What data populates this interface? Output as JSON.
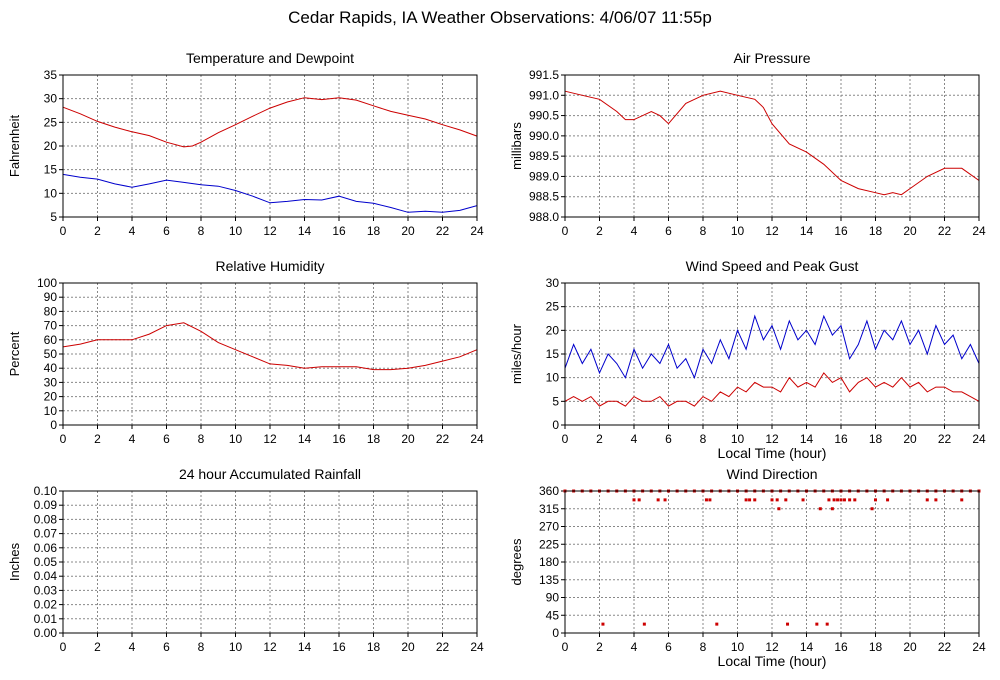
{
  "page": {
    "title": "Cedar Rapids, IA Weather Observations: 4/06/07 11:55p"
  },
  "colors": {
    "red": "#cc0000",
    "blue": "#0000cc",
    "grid": "#888888",
    "axis": "#000000"
  },
  "chart_data": [
    {
      "id": "temp",
      "type": "line",
      "title": "Temperature and Dewpoint",
      "xlabel": "",
      "ylabel": "Fahrenheit",
      "xlim": [
        0,
        24
      ],
      "ylim": [
        5,
        35
      ],
      "xticks": [
        0,
        2,
        4,
        6,
        8,
        10,
        12,
        14,
        16,
        18,
        20,
        22,
        24
      ],
      "yticks": [
        5,
        10,
        15,
        20,
        25,
        30,
        35
      ],
      "ytick_labels": [
        "5",
        "10",
        "15",
        "20",
        "25",
        "30",
        "35"
      ],
      "grid": true,
      "series": [
        {
          "color": "#cc0000",
          "x": [
            0,
            1,
            2,
            3,
            4,
            5,
            6,
            7,
            7.5,
            8,
            9,
            10,
            11,
            12,
            13,
            14,
            15,
            16,
            17,
            18,
            19,
            20,
            21,
            22,
            23,
            24
          ],
          "y": [
            28.2,
            26.8,
            25.2,
            24,
            23,
            22.2,
            20.8,
            19.8,
            20,
            20.8,
            22.8,
            24.5,
            26.3,
            28,
            29.3,
            30.2,
            29.8,
            30.2,
            29.7,
            28.5,
            27.3,
            26.5,
            25.7,
            24.5,
            23.4,
            22.1
          ]
        },
        {
          "color": "#0000cc",
          "x": [
            0,
            1,
            2,
            3,
            4,
            5,
            6,
            7,
            8,
            9,
            10,
            11,
            12,
            13,
            14,
            15,
            16,
            17,
            18,
            19,
            20,
            21,
            22,
            23,
            24
          ],
          "y": [
            14,
            13.4,
            13,
            12,
            11.3,
            12,
            12.8,
            12.3,
            11.8,
            11.5,
            10.6,
            9.4,
            8,
            8.3,
            8.7,
            8.6,
            9.4,
            8.3,
            7.9,
            7,
            6,
            6.2,
            6,
            6.4,
            7.4
          ]
        }
      ]
    },
    {
      "id": "pressure",
      "type": "line",
      "title": "Air Pressure",
      "xlabel": "",
      "ylabel": "millibars",
      "xlim": [
        0,
        24
      ],
      "ylim": [
        988.0,
        991.5
      ],
      "xticks": [
        0,
        2,
        4,
        6,
        8,
        10,
        12,
        14,
        16,
        18,
        20,
        22,
        24
      ],
      "yticks": [
        988.0,
        988.5,
        989.0,
        989.5,
        990.0,
        990.5,
        991.0,
        991.5
      ],
      "ytick_labels": [
        "988.0",
        "988.5",
        "989.0",
        "989.5",
        "990.0",
        "990.5",
        "991.0",
        "991.5"
      ],
      "grid": true,
      "series": [
        {
          "color": "#cc0000",
          "x": [
            0,
            1,
            2,
            3,
            3.5,
            4,
            5,
            5.5,
            6,
            7,
            8,
            9,
            10,
            11,
            11.5,
            12,
            13,
            14,
            15,
            16,
            17,
            18,
            18.5,
            19,
            19.5,
            20,
            21,
            22,
            23,
            24
          ],
          "y": [
            991.1,
            991.0,
            990.9,
            990.6,
            990.4,
            990.4,
            990.6,
            990.5,
            990.3,
            990.8,
            991.0,
            991.1,
            991.0,
            990.9,
            990.7,
            990.3,
            989.8,
            989.6,
            989.3,
            988.9,
            988.7,
            988.6,
            988.55,
            988.6,
            988.55,
            988.7,
            989.0,
            989.2,
            989.2,
            988.9
          ]
        }
      ]
    },
    {
      "id": "humidity",
      "type": "line",
      "title": "Relative Humidity",
      "xlabel": "",
      "ylabel": "Percent",
      "xlim": [
        0,
        24
      ],
      "ylim": [
        0,
        100
      ],
      "xticks": [
        0,
        2,
        4,
        6,
        8,
        10,
        12,
        14,
        16,
        18,
        20,
        22,
        24
      ],
      "yticks": [
        0,
        10,
        20,
        30,
        40,
        50,
        60,
        70,
        80,
        90,
        100
      ],
      "ytick_labels": [
        "0",
        "10",
        "20",
        "30",
        "40",
        "50",
        "60",
        "70",
        "80",
        "90",
        "100"
      ],
      "grid": true,
      "series": [
        {
          "color": "#cc0000",
          "x": [
            0,
            1,
            2,
            3,
            4,
            5,
            6,
            7,
            8,
            9,
            10,
            11,
            12,
            13,
            14,
            15,
            16,
            17,
            18,
            19,
            20,
            21,
            22,
            23,
            24
          ],
          "y": [
            55,
            57,
            60,
            60,
            60,
            64,
            70,
            72,
            66,
            58,
            53,
            48,
            43,
            42,
            40,
            41,
            41,
            41,
            39,
            39,
            40,
            42,
            45,
            48,
            53
          ]
        }
      ]
    },
    {
      "id": "wind",
      "type": "line",
      "title": "Wind Speed and Peak Gust",
      "xlabel": "Local Time (hour)",
      "ylabel": "miles/hour",
      "xlim": [
        0,
        24
      ],
      "ylim": [
        0,
        30
      ],
      "xticks": [
        0,
        2,
        4,
        6,
        8,
        10,
        12,
        14,
        16,
        18,
        20,
        22,
        24
      ],
      "yticks": [
        0,
        5,
        10,
        15,
        20,
        25,
        30
      ],
      "ytick_labels": [
        "0",
        "5",
        "10",
        "15",
        "20",
        "25",
        "30"
      ],
      "grid": true,
      "series": [
        {
          "color": "#0000cc",
          "x": [
            0,
            0.5,
            1,
            1.5,
            2,
            2.5,
            3,
            3.5,
            4,
            4.5,
            5,
            5.5,
            6,
            6.5,
            7,
            7.5,
            8,
            8.5,
            9,
            9.5,
            10,
            10.5,
            11,
            11.5,
            12,
            12.5,
            13,
            13.5,
            14,
            14.5,
            15,
            15.5,
            16,
            16.5,
            17,
            17.5,
            18,
            18.5,
            19,
            19.5,
            20,
            20.5,
            21,
            21.5,
            22,
            22.5,
            23,
            23.5,
            24
          ],
          "y": [
            12,
            17,
            13,
            16,
            11,
            15,
            13,
            10,
            16,
            12,
            15,
            13,
            17,
            12,
            14,
            10,
            16,
            13,
            18,
            14,
            20,
            16,
            23,
            18,
            21,
            16,
            22,
            18,
            20,
            17,
            23,
            19,
            21,
            14,
            17,
            22,
            16,
            20,
            18,
            22,
            17,
            20,
            15,
            21,
            17,
            19,
            14,
            17,
            13
          ]
        },
        {
          "color": "#cc0000",
          "x": [
            0,
            0.5,
            1,
            1.5,
            2,
            2.5,
            3,
            3.5,
            4,
            4.5,
            5,
            5.5,
            6,
            6.5,
            7,
            7.5,
            8,
            8.5,
            9,
            9.5,
            10,
            10.5,
            11,
            11.5,
            12,
            12.5,
            13,
            13.5,
            14,
            14.5,
            15,
            15.5,
            16,
            16.5,
            17,
            17.5,
            18,
            18.5,
            19,
            19.5,
            20,
            20.5,
            21,
            21.5,
            22,
            22.5,
            23,
            23.5,
            24
          ],
          "y": [
            5,
            6,
            5,
            6,
            4,
            5,
            5,
            4,
            6,
            5,
            5,
            6,
            4,
            5,
            5,
            4,
            6,
            5,
            7,
            6,
            8,
            7,
            9,
            8,
            8,
            7,
            10,
            8,
            9,
            8,
            11,
            9,
            10,
            7,
            9,
            10,
            8,
            9,
            8,
            10,
            8,
            9,
            7,
            8,
            8,
            7,
            7,
            6,
            5
          ]
        }
      ]
    },
    {
      "id": "rain",
      "type": "line",
      "title": "24 hour Accumulated Rainfall",
      "xlabel": "",
      "ylabel": "Inches",
      "xlim": [
        0,
        24
      ],
      "ylim": [
        0,
        0.1
      ],
      "xticks": [
        0,
        2,
        4,
        6,
        8,
        10,
        12,
        14,
        16,
        18,
        20,
        22,
        24
      ],
      "yticks": [
        0,
        0.01,
        0.02,
        0.03,
        0.04,
        0.05,
        0.06,
        0.07,
        0.08,
        0.09,
        0.1
      ],
      "ytick_labels": [
        "0.00",
        "0.01",
        "0.02",
        "0.03",
        "0.04",
        "0.05",
        "0.06",
        "0.07",
        "0.08",
        "0.09",
        "0.10"
      ],
      "grid": true,
      "series": [
        {
          "color": "#cc0000",
          "x": [
            0,
            24
          ],
          "y": [
            0,
            0
          ]
        }
      ]
    },
    {
      "id": "direction",
      "type": "scatter",
      "title": "Wind Direction",
      "xlabel": "Local Time (hour)",
      "ylabel": "degrees",
      "xlim": [
        0,
        24
      ],
      "ylim": [
        0,
        360
      ],
      "xticks": [
        0,
        2,
        4,
        6,
        8,
        10,
        12,
        14,
        16,
        18,
        20,
        22,
        24
      ],
      "yticks": [
        0,
        45,
        90,
        135,
        180,
        225,
        270,
        315,
        360
      ],
      "ytick_labels": [
        "0",
        "45",
        "90",
        "135",
        "180",
        "225",
        "270",
        "315",
        "360"
      ],
      "grid": true,
      "series": [
        {
          "color": "#cc0000",
          "x": [
            0,
            0.5,
            1,
            1.5,
            2,
            2.5,
            3,
            3.5,
            4,
            4.5,
            5,
            5.5,
            6,
            6.5,
            7,
            7.5,
            8,
            8.5,
            9,
            9.5,
            10,
            10.5,
            11,
            11.5,
            12,
            12.5,
            13,
            13.5,
            14,
            14.5,
            15,
            15.5,
            16,
            16.5,
            17,
            17.5,
            18,
            18.5,
            19,
            19.5,
            20,
            20.5,
            21,
            21.5,
            22,
            22.5,
            23,
            23.5,
            24,
            4.0,
            4.3,
            5.4,
            5.8,
            8.2,
            8.4,
            10.5,
            10.7,
            11.0,
            12.0,
            12.3,
            12.8,
            13.8,
            15.3,
            15.6,
            15.8,
            16.0,
            16.2,
            16.5,
            16.8,
            18.0,
            18.7,
            21.0,
            21.5,
            23.0,
            12.4,
            14.8,
            15.5,
            17.8,
            2.2,
            4.6,
            8.8,
            12.9,
            14.6,
            15.2
          ],
          "y": [
            360,
            360,
            360,
            360,
            360,
            360,
            360,
            360,
            360,
            360,
            360,
            360,
            360,
            360,
            360,
            360,
            360,
            360,
            360,
            360,
            360,
            360,
            360,
            360,
            360,
            360,
            360,
            360,
            360,
            360,
            360,
            360,
            360,
            360,
            360,
            360,
            360,
            360,
            360,
            360,
            360,
            360,
            360,
            360,
            360,
            360,
            360,
            360,
            360,
            337.5,
            337.5,
            337.5,
            337.5,
            337.5,
            337.5,
            337.5,
            337.5,
            337.5,
            337.5,
            337.5,
            337.5,
            337.5,
            337.5,
            337.5,
            337.5,
            337.5,
            337.5,
            337.5,
            337.5,
            337.5,
            337.5,
            337.5,
            337.5,
            337.5,
            315,
            315,
            315,
            315,
            22.5,
            22.5,
            22.5,
            22.5,
            22.5,
            22.5
          ]
        }
      ]
    }
  ]
}
